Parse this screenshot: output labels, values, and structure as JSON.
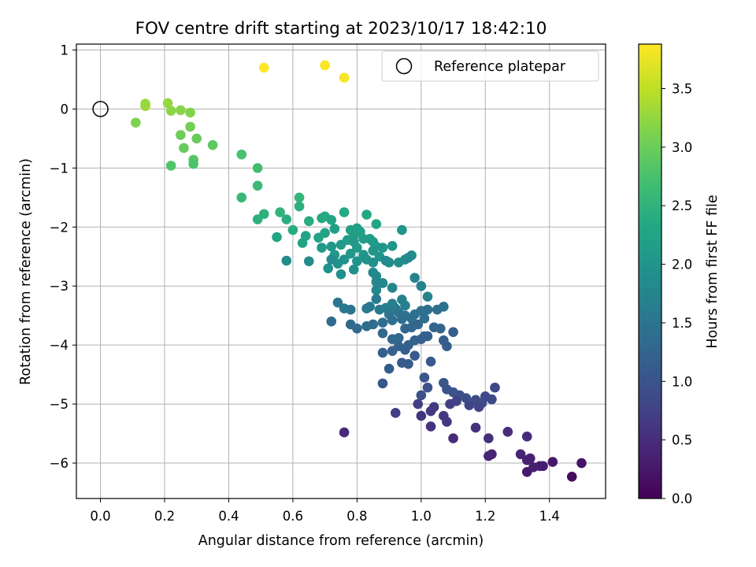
{
  "chart_data": {
    "type": "scatter",
    "title": "FOV centre drift starting at 2023/10/17 18:42:10",
    "xlabel": "Angular distance from reference (arcmin)",
    "ylabel": "Rotation from reference (arcmin)",
    "xlim": [
      -0.075,
      1.575
    ],
    "ylim": [
      -6.6,
      1.1
    ],
    "x_ticks": [
      0.0,
      0.2,
      0.4,
      0.6,
      0.8,
      1.0,
      1.2,
      1.4
    ],
    "x_tick_labels": [
      "0.0",
      "0.2",
      "0.4",
      "0.6",
      "0.8",
      "1.0",
      "1.2",
      "1.4"
    ],
    "y_ticks": [
      1,
      0,
      -1,
      -2,
      -3,
      -4,
      -5,
      -6
    ],
    "y_tick_labels": [
      "1",
      "0",
      "−1",
      "−2",
      "−3",
      "−4",
      "−5",
      "−6"
    ],
    "grid": true,
    "legend": {
      "position": "upper right",
      "entries": [
        "Reference platepar"
      ]
    },
    "reference_point": {
      "label": "Reference platepar",
      "x": 0.0,
      "y": 0.0
    },
    "colorbar": {
      "label": "Hours from first FF file",
      "colormap": "viridis",
      "range": [
        0.0,
        3.88
      ],
      "ticks": [
        0.0,
        0.5,
        1.0,
        1.5,
        2.0,
        2.5,
        3.0,
        3.5
      ],
      "tick_labels": [
        "0.0",
        "0.5",
        "1.0",
        "1.5",
        "2.0",
        "2.5",
        "3.0",
        "3.5"
      ]
    },
    "points": [
      [
        0.51,
        0.7,
        3.88
      ],
      [
        0.7,
        0.74,
        3.86
      ],
      [
        0.76,
        0.53,
        3.84
      ],
      [
        0.14,
        0.05,
        3.3
      ],
      [
        0.14,
        0.09,
        3.28
      ],
      [
        0.21,
        0.1,
        3.26
      ],
      [
        0.22,
        -0.03,
        3.22
      ],
      [
        0.25,
        -0.02,
        3.18
      ],
      [
        0.28,
        -0.06,
        3.15
      ],
      [
        0.11,
        -0.23,
        3.12
      ],
      [
        0.28,
        -0.3,
        3.05
      ],
      [
        0.25,
        -0.44,
        3.02
      ],
      [
        0.3,
        -0.5,
        2.98
      ],
      [
        0.26,
        -0.66,
        2.95
      ],
      [
        0.35,
        -0.61,
        2.9
      ],
      [
        0.29,
        -0.86,
        2.85
      ],
      [
        0.22,
        -0.96,
        2.82
      ],
      [
        0.29,
        -0.93,
        2.78
      ],
      [
        0.44,
        -0.77,
        2.75
      ],
      [
        0.49,
        -1.0,
        2.7
      ],
      [
        0.49,
        -1.3,
        2.62
      ],
      [
        0.44,
        -1.5,
        2.6
      ],
      [
        0.62,
        -1.5,
        2.55
      ],
      [
        0.56,
        -1.75,
        2.5
      ],
      [
        0.51,
        -1.78,
        2.48
      ],
      [
        0.49,
        -1.87,
        2.46
      ],
      [
        0.62,
        -1.65,
        2.45
      ],
      [
        0.58,
        -1.87,
        2.43
      ],
      [
        0.6,
        -2.05,
        2.4
      ],
      [
        0.65,
        -1.9,
        2.38
      ],
      [
        0.69,
        -1.85,
        2.36
      ],
      [
        0.7,
        -1.82,
        2.35
      ],
      [
        0.76,
        -1.75,
        2.34
      ],
      [
        0.83,
        -1.79,
        2.32
      ],
      [
        0.86,
        -1.95,
        2.3
      ],
      [
        0.72,
        -1.88,
        2.28
      ],
      [
        0.55,
        -2.17,
        2.26
      ],
      [
        0.64,
        -2.15,
        2.25
      ],
      [
        0.63,
        -2.27,
        2.24
      ],
      [
        0.68,
        -2.18,
        2.22
      ],
      [
        0.7,
        -2.1,
        2.21
      ],
      [
        0.73,
        -2.03,
        2.2
      ],
      [
        0.78,
        -2.05,
        2.19
      ],
      [
        0.8,
        -2.02,
        2.18
      ],
      [
        0.81,
        -2.08,
        2.17
      ],
      [
        0.79,
        -2.15,
        2.16
      ],
      [
        0.77,
        -2.22,
        2.15
      ],
      [
        0.82,
        -2.2,
        2.14
      ],
      [
        0.84,
        -2.2,
        2.13
      ],
      [
        0.85,
        -2.25,
        2.12
      ],
      [
        0.86,
        -2.33,
        2.11
      ],
      [
        0.8,
        -2.35,
        2.1
      ],
      [
        0.79,
        -2.25,
        2.1
      ],
      [
        0.75,
        -2.3,
        2.09
      ],
      [
        0.72,
        -2.33,
        2.08
      ],
      [
        0.69,
        -2.35,
        2.07
      ],
      [
        0.73,
        -2.47,
        2.06
      ],
      [
        0.78,
        -2.45,
        2.05
      ],
      [
        0.82,
        -2.47,
        2.04
      ],
      [
        0.85,
        -2.4,
        2.03
      ],
      [
        0.88,
        -2.35,
        2.02
      ],
      [
        0.91,
        -2.32,
        2.01
      ],
      [
        0.94,
        -2.05,
        2.0
      ],
      [
        0.87,
        -2.5,
        1.99
      ],
      [
        0.83,
        -2.55,
        1.98
      ],
      [
        0.8,
        -2.58,
        1.97
      ],
      [
        0.76,
        -2.55,
        1.96
      ],
      [
        0.74,
        -2.62,
        1.95
      ],
      [
        0.71,
        -2.7,
        1.94
      ],
      [
        0.75,
        -2.8,
        1.93
      ],
      [
        0.79,
        -2.72,
        1.92
      ],
      [
        0.85,
        -2.6,
        1.91
      ],
      [
        0.9,
        -2.6,
        1.9
      ],
      [
        0.93,
        -2.6,
        1.89
      ],
      [
        0.95,
        -2.55,
        1.88
      ],
      [
        0.97,
        -2.48,
        1.87
      ],
      [
        0.58,
        -2.57,
        1.86
      ],
      [
        0.65,
        -2.58,
        1.85
      ],
      [
        0.72,
        -2.55,
        1.84
      ],
      [
        0.89,
        -2.57,
        1.83
      ],
      [
        0.96,
        -2.52,
        1.82
      ],
      [
        0.85,
        -2.77,
        1.81
      ],
      [
        0.86,
        -2.83,
        1.8
      ],
      [
        0.86,
        -2.93,
        1.79
      ],
      [
        0.86,
        -3.07,
        1.78
      ],
      [
        0.88,
        -2.95,
        1.77
      ],
      [
        0.91,
        -3.03,
        1.76
      ],
      [
        0.98,
        -2.86,
        1.74
      ],
      [
        1.0,
        -3.0,
        1.72
      ],
      [
        1.02,
        -3.18,
        1.7
      ],
      [
        0.94,
        -3.23,
        1.68
      ],
      [
        0.95,
        -3.33,
        1.66
      ],
      [
        0.91,
        -3.3,
        1.64
      ],
      [
        0.89,
        -3.37,
        1.62
      ],
      [
        0.92,
        -3.38,
        1.6
      ],
      [
        0.87,
        -3.4,
        1.58
      ],
      [
        0.86,
        -3.22,
        1.56
      ],
      [
        0.84,
        -3.35,
        1.55
      ],
      [
        0.83,
        -3.38,
        1.54
      ],
      [
        0.76,
        -3.38,
        1.53
      ],
      [
        0.74,
        -3.28,
        1.52
      ],
      [
        0.78,
        -3.4,
        1.51
      ],
      [
        0.9,
        -3.48,
        1.5
      ],
      [
        0.93,
        -3.45,
        1.49
      ],
      [
        0.95,
        -3.5,
        1.48
      ],
      [
        0.98,
        -3.48,
        1.47
      ],
      [
        1.0,
        -3.42,
        1.46
      ],
      [
        1.02,
        -3.4,
        1.45
      ],
      [
        1.05,
        -3.4,
        1.44
      ],
      [
        1.07,
        -3.35,
        1.43
      ],
      [
        1.01,
        -3.55,
        1.42
      ],
      [
        0.97,
        -3.55,
        1.41
      ],
      [
        0.94,
        -3.56,
        1.4
      ],
      [
        0.91,
        -3.58,
        1.39
      ],
      [
        0.88,
        -3.62,
        1.38
      ],
      [
        0.85,
        -3.65,
        1.37
      ],
      [
        0.83,
        -3.68,
        1.36
      ],
      [
        0.8,
        -3.72,
        1.35
      ],
      [
        0.78,
        -3.65,
        1.34
      ],
      [
        0.72,
        -3.6,
        1.33
      ],
      [
        0.88,
        -3.8,
        1.32
      ],
      [
        0.91,
        -3.9,
        1.31
      ],
      [
        0.93,
        -3.88,
        1.3
      ],
      [
        0.95,
        -3.72,
        1.29
      ],
      [
        0.97,
        -3.7,
        1.28
      ],
      [
        0.99,
        -3.65,
        1.27
      ],
      [
        1.04,
        -3.7,
        1.26
      ],
      [
        1.06,
        -3.72,
        1.25
      ],
      [
        1.01,
        -3.85,
        1.24
      ],
      [
        0.98,
        -3.92,
        1.23
      ],
      [
        0.96,
        -4.0,
        1.22
      ],
      [
        0.93,
        -4.02,
        1.21
      ],
      [
        0.91,
        -4.1,
        1.2
      ],
      [
        0.88,
        -4.13,
        1.19
      ],
      [
        0.95,
        -4.08,
        1.18
      ],
      [
        1.0,
        -3.9,
        1.17
      ],
      [
        1.02,
        -3.85,
        1.16
      ],
      [
        1.07,
        -3.92,
        1.15
      ],
      [
        1.08,
        -4.02,
        1.14
      ],
      [
        1.1,
        -3.78,
        1.13
      ],
      [
        0.9,
        -4.4,
        1.12
      ],
      [
        0.94,
        -4.3,
        1.11
      ],
      [
        0.96,
        -4.32,
        1.1
      ],
      [
        0.98,
        -4.18,
        1.09
      ],
      [
        1.03,
        -4.28,
        1.08
      ],
      [
        0.88,
        -4.65,
        1.07
      ],
      [
        1.01,
        -4.55,
        1.05
      ],
      [
        1.07,
        -4.64,
        1.03
      ],
      [
        1.08,
        -4.75,
        1.01
      ],
      [
        1.1,
        -4.8,
        0.99
      ],
      [
        1.02,
        -4.72,
        0.97
      ],
      [
        1.0,
        -4.85,
        0.95
      ],
      [
        1.12,
        -4.85,
        0.93
      ],
      [
        1.14,
        -4.9,
        0.91
      ],
      [
        1.17,
        -4.93,
        0.89
      ],
      [
        1.19,
        -4.98,
        0.87
      ],
      [
        1.2,
        -4.87,
        0.85
      ],
      [
        1.22,
        -4.92,
        0.83
      ],
      [
        1.23,
        -4.72,
        0.81
      ],
      [
        1.18,
        -5.05,
        0.79
      ],
      [
        1.15,
        -5.02,
        0.77
      ],
      [
        1.11,
        -4.95,
        0.75
      ],
      [
        1.09,
        -5.0,
        0.73
      ],
      [
        0.99,
        -5.0,
        0.71
      ],
      [
        0.92,
        -5.15,
        0.69
      ],
      [
        1.04,
        -5.05,
        0.67
      ],
      [
        1.03,
        -5.12,
        0.65
      ],
      [
        1.07,
        -5.2,
        0.63
      ],
      [
        1.08,
        -5.3,
        0.61
      ],
      [
        1.0,
        -5.2,
        0.59
      ],
      [
        1.03,
        -5.38,
        0.57
      ],
      [
        1.17,
        -5.4,
        0.55
      ],
      [
        1.21,
        -5.58,
        0.53
      ],
      [
        1.27,
        -5.47,
        0.51
      ],
      [
        1.33,
        -5.55,
        0.49
      ],
      [
        1.1,
        -5.58,
        0.47
      ],
      [
        0.76,
        -5.48,
        0.45
      ],
      [
        1.21,
        -5.88,
        0.43
      ],
      [
        1.22,
        -5.85,
        0.41
      ],
      [
        1.31,
        -5.85,
        0.39
      ],
      [
        1.33,
        -5.95,
        0.37
      ],
      [
        1.34,
        -5.92,
        0.35
      ],
      [
        1.35,
        -6.07,
        0.33
      ],
      [
        1.37,
        -6.05,
        0.31
      ],
      [
        1.38,
        -6.05,
        0.29
      ],
      [
        1.33,
        -6.15,
        0.27
      ],
      [
        1.41,
        -5.98,
        0.25
      ],
      [
        1.5,
        -6.0,
        0.2
      ],
      [
        1.47,
        -6.23,
        0.12
      ]
    ]
  }
}
